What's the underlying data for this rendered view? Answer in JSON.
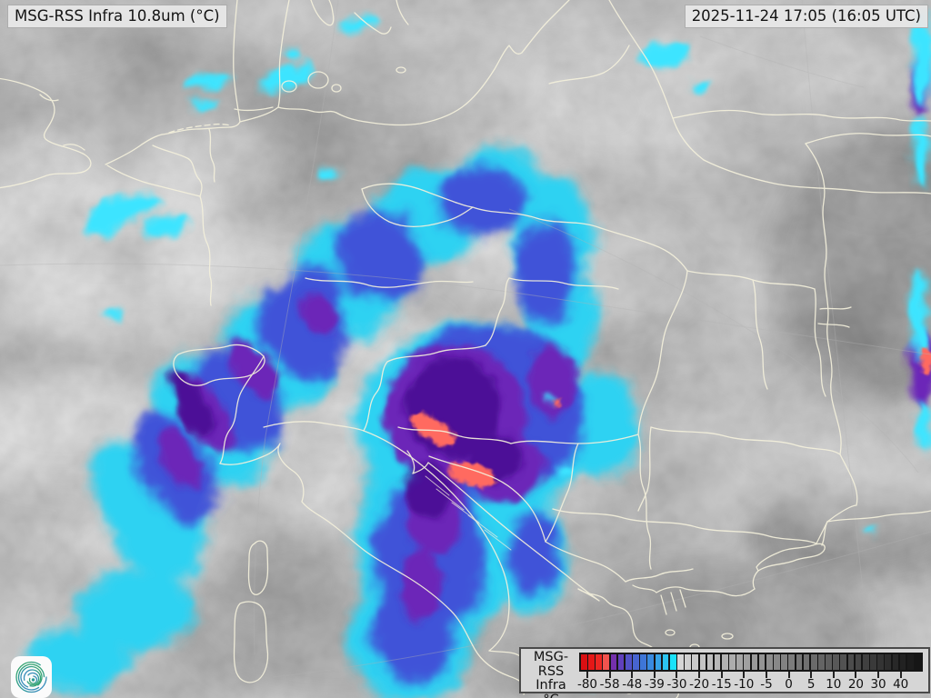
{
  "header": {
    "product_label": "MSG-RSS Infra 10.8um (°C)",
    "timestamp_label": "2025-11-24 17:05 (16:05 UTC)"
  },
  "legend": {
    "title_line1": "MSG-RSS",
    "title_line2": "Infra",
    "unit": "°C",
    "ticks": [
      "-80",
      "-58",
      "-48",
      "-39",
      "-30",
      "-20",
      "-15",
      "-10",
      "-5",
      "0",
      "5",
      "10",
      "20",
      "30",
      "40"
    ],
    "segment_colors": [
      "#d90f12",
      "#e51717",
      "#ed2723",
      "#f2534e",
      "#7430ac",
      "#6040bc",
      "#5252c6",
      "#4764d0",
      "#3e76d8",
      "#398ae0",
      "#36a3e8",
      "#2cc4f0",
      "#1ae2fa",
      "#d6d6d6",
      "#d0d0d0",
      "#cacaca",
      "#c4c4c4",
      "#bebebe",
      "#b8b8b8",
      "#b2b2b2",
      "#acacac",
      "#a6a6a6",
      "#a0a0a0",
      "#9a9a9a",
      "#949494",
      "#8e8e8e",
      "#888888",
      "#828282",
      "#7c7c7c",
      "#767676",
      "#707070",
      "#6a6a6a",
      "#646464",
      "#5e5e5e",
      "#585858",
      "#525252",
      "#4c4c4c",
      "#464646",
      "#404040",
      "#3a3a3a",
      "#343434",
      "#2e2e2e",
      "#282828",
      "#222222",
      "#1c1c1c",
      "#161616"
    ]
  },
  "logo": {
    "icon": "spiral-logo"
  },
  "colors": {
    "border_line": "#f4f0dc",
    "coldest_red": "#ff6b60",
    "cold_dark_purple": "#491093",
    "cold_purple": "#6c28b8",
    "cold_blue": "#4053d8",
    "cold_cyan": "#2ed2f2",
    "cold_cyan_bright": "#3ee4ff"
  }
}
